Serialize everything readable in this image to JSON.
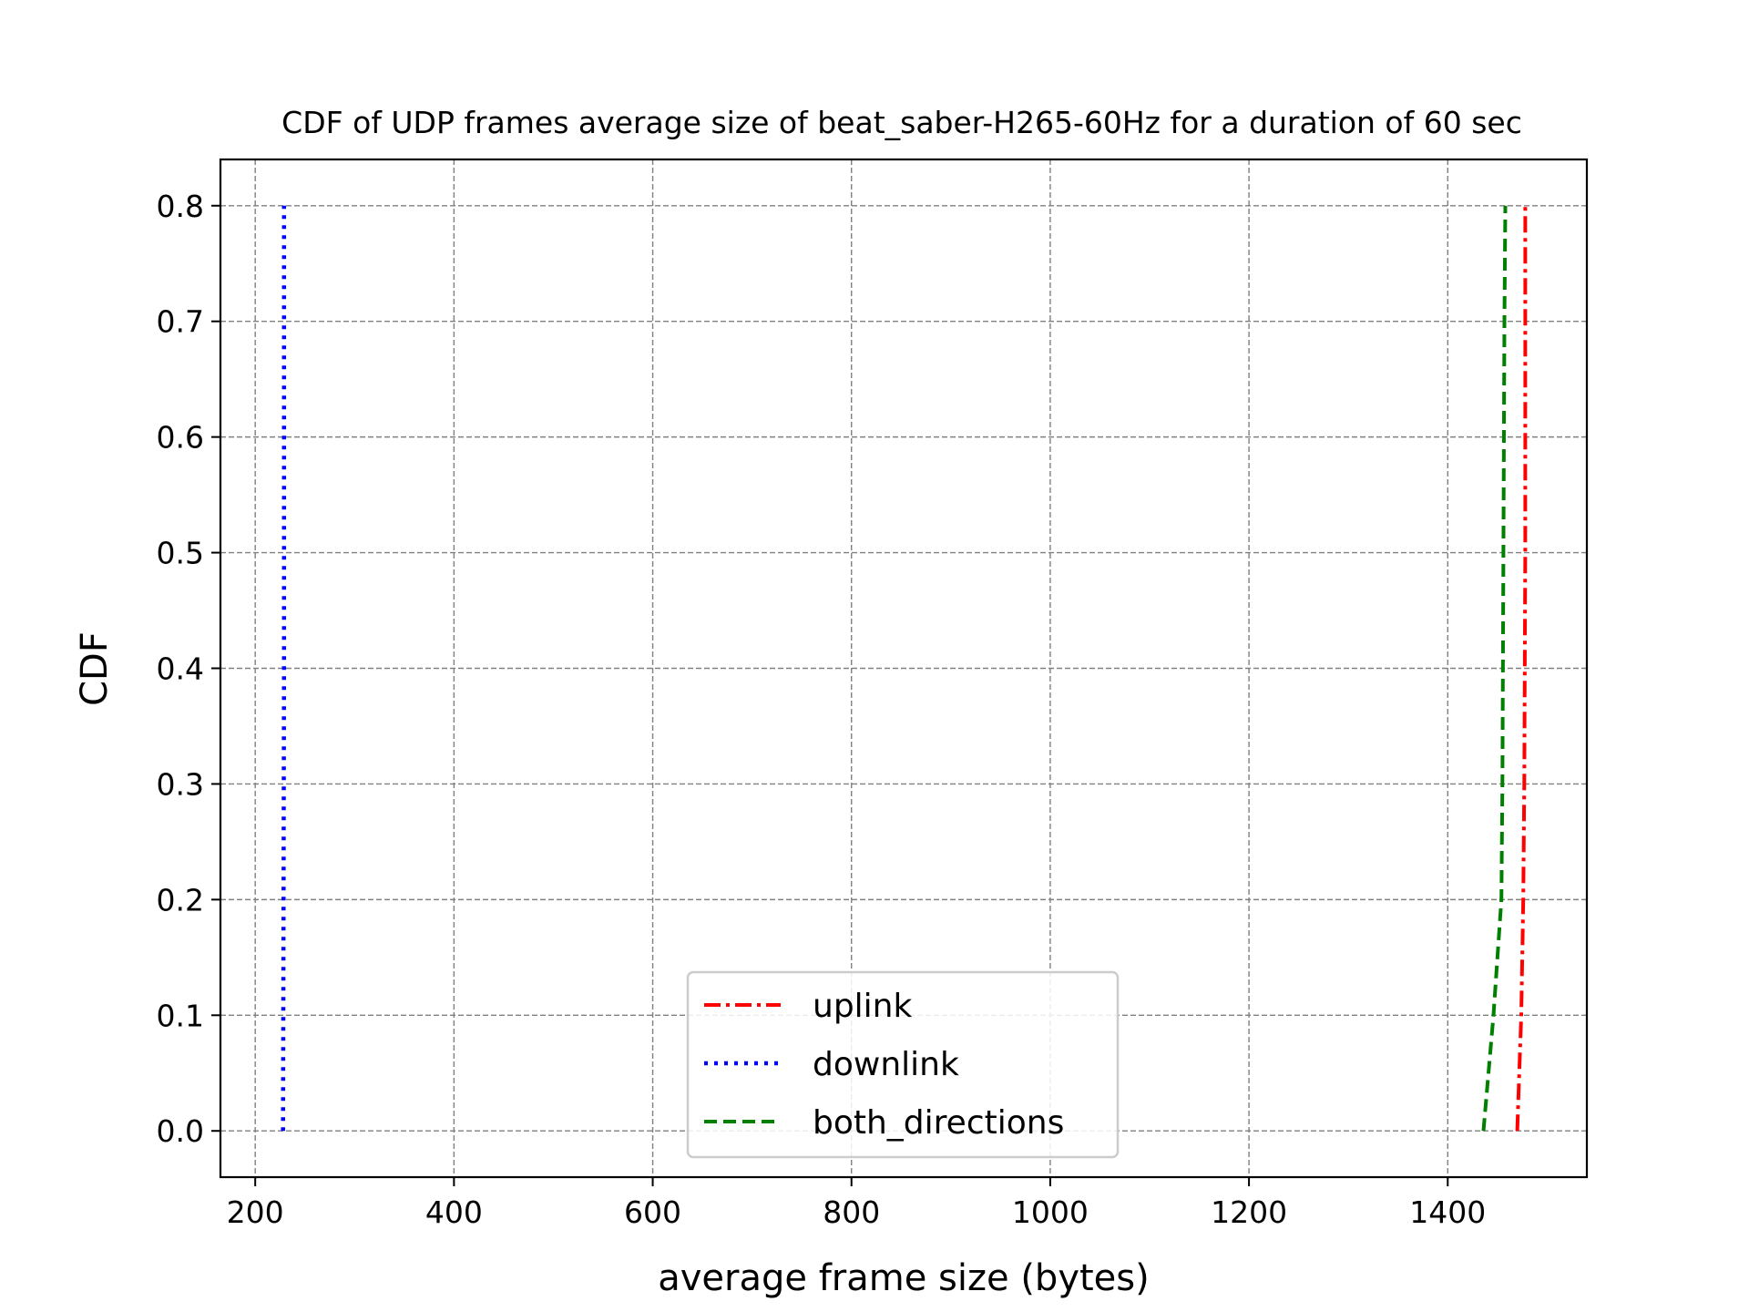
{
  "chart_data": {
    "type": "line",
    "title": "CDF of UDP frames average size of beat_saber-H265-60Hz for a duration of 60 sec",
    "xlabel": "average frame size (bytes)",
    "ylabel": "CDF",
    "xlim": [
      165,
      1540
    ],
    "ylim": [
      -0.04,
      0.84
    ],
    "xticks": [
      200,
      400,
      600,
      800,
      1000,
      1200,
      1400
    ],
    "xtick_labels": [
      "200",
      "400",
      "600",
      "800",
      "1000",
      "1200",
      "1400"
    ],
    "yticks": [
      0.0,
      0.1,
      0.2,
      0.3,
      0.4,
      0.5,
      0.6,
      0.7,
      0.8
    ],
    "ytick_labels": [
      "0.0",
      "0.1",
      "0.2",
      "0.3",
      "0.4",
      "0.5",
      "0.6",
      "0.7",
      "0.8"
    ],
    "grid": true,
    "legend_position": "bottom-center",
    "series": [
      {
        "name": "uplink",
        "color": "#ff0000",
        "style": "dashdot",
        "x": [
          1470,
          1474,
          1476,
          1477,
          1478,
          1478,
          1478
        ],
        "y": [
          0.0,
          0.1,
          0.2,
          0.3,
          0.5,
          0.7,
          0.8
        ]
      },
      {
        "name": "downlink",
        "color": "#0000ff",
        "style": "dotted",
        "x": [
          228,
          228.5,
          229,
          229,
          229
        ],
        "y": [
          0.0,
          0.2,
          0.4,
          0.6,
          0.8
        ]
      },
      {
        "name": "both_directions",
        "color": "#008000",
        "style": "dashed",
        "x": [
          1436,
          1446,
          1454,
          1455,
          1456,
          1457,
          1458
        ],
        "y": [
          0.0,
          0.1,
          0.2,
          0.3,
          0.5,
          0.7,
          0.8
        ]
      }
    ]
  }
}
